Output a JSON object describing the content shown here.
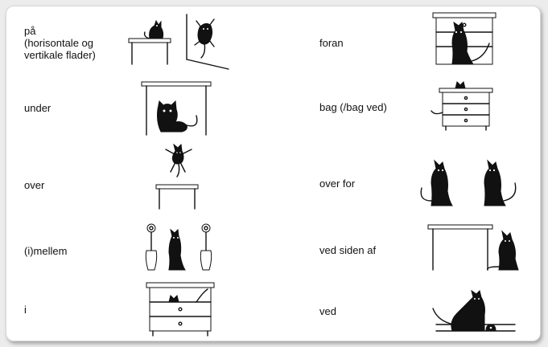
{
  "left_column": [
    {
      "label_lines": [
        "på",
        "(horisontale og",
        "vertikale flader)"
      ]
    },
    {
      "label_lines": [
        "under"
      ]
    },
    {
      "label_lines": [
        "over"
      ]
    },
    {
      "label_lines": [
        "(i)mellem"
      ]
    },
    {
      "label_lines": [
        "i"
      ]
    }
  ],
  "right_column": [
    {
      "label_lines": [
        "foran"
      ]
    },
    {
      "label_lines": [
        "bag (/bag ved)"
      ]
    },
    {
      "label_lines": [
        "over for"
      ]
    },
    {
      "label_lines": [
        "ved siden af"
      ]
    },
    {
      "label_lines": [
        "ved"
      ]
    }
  ]
}
